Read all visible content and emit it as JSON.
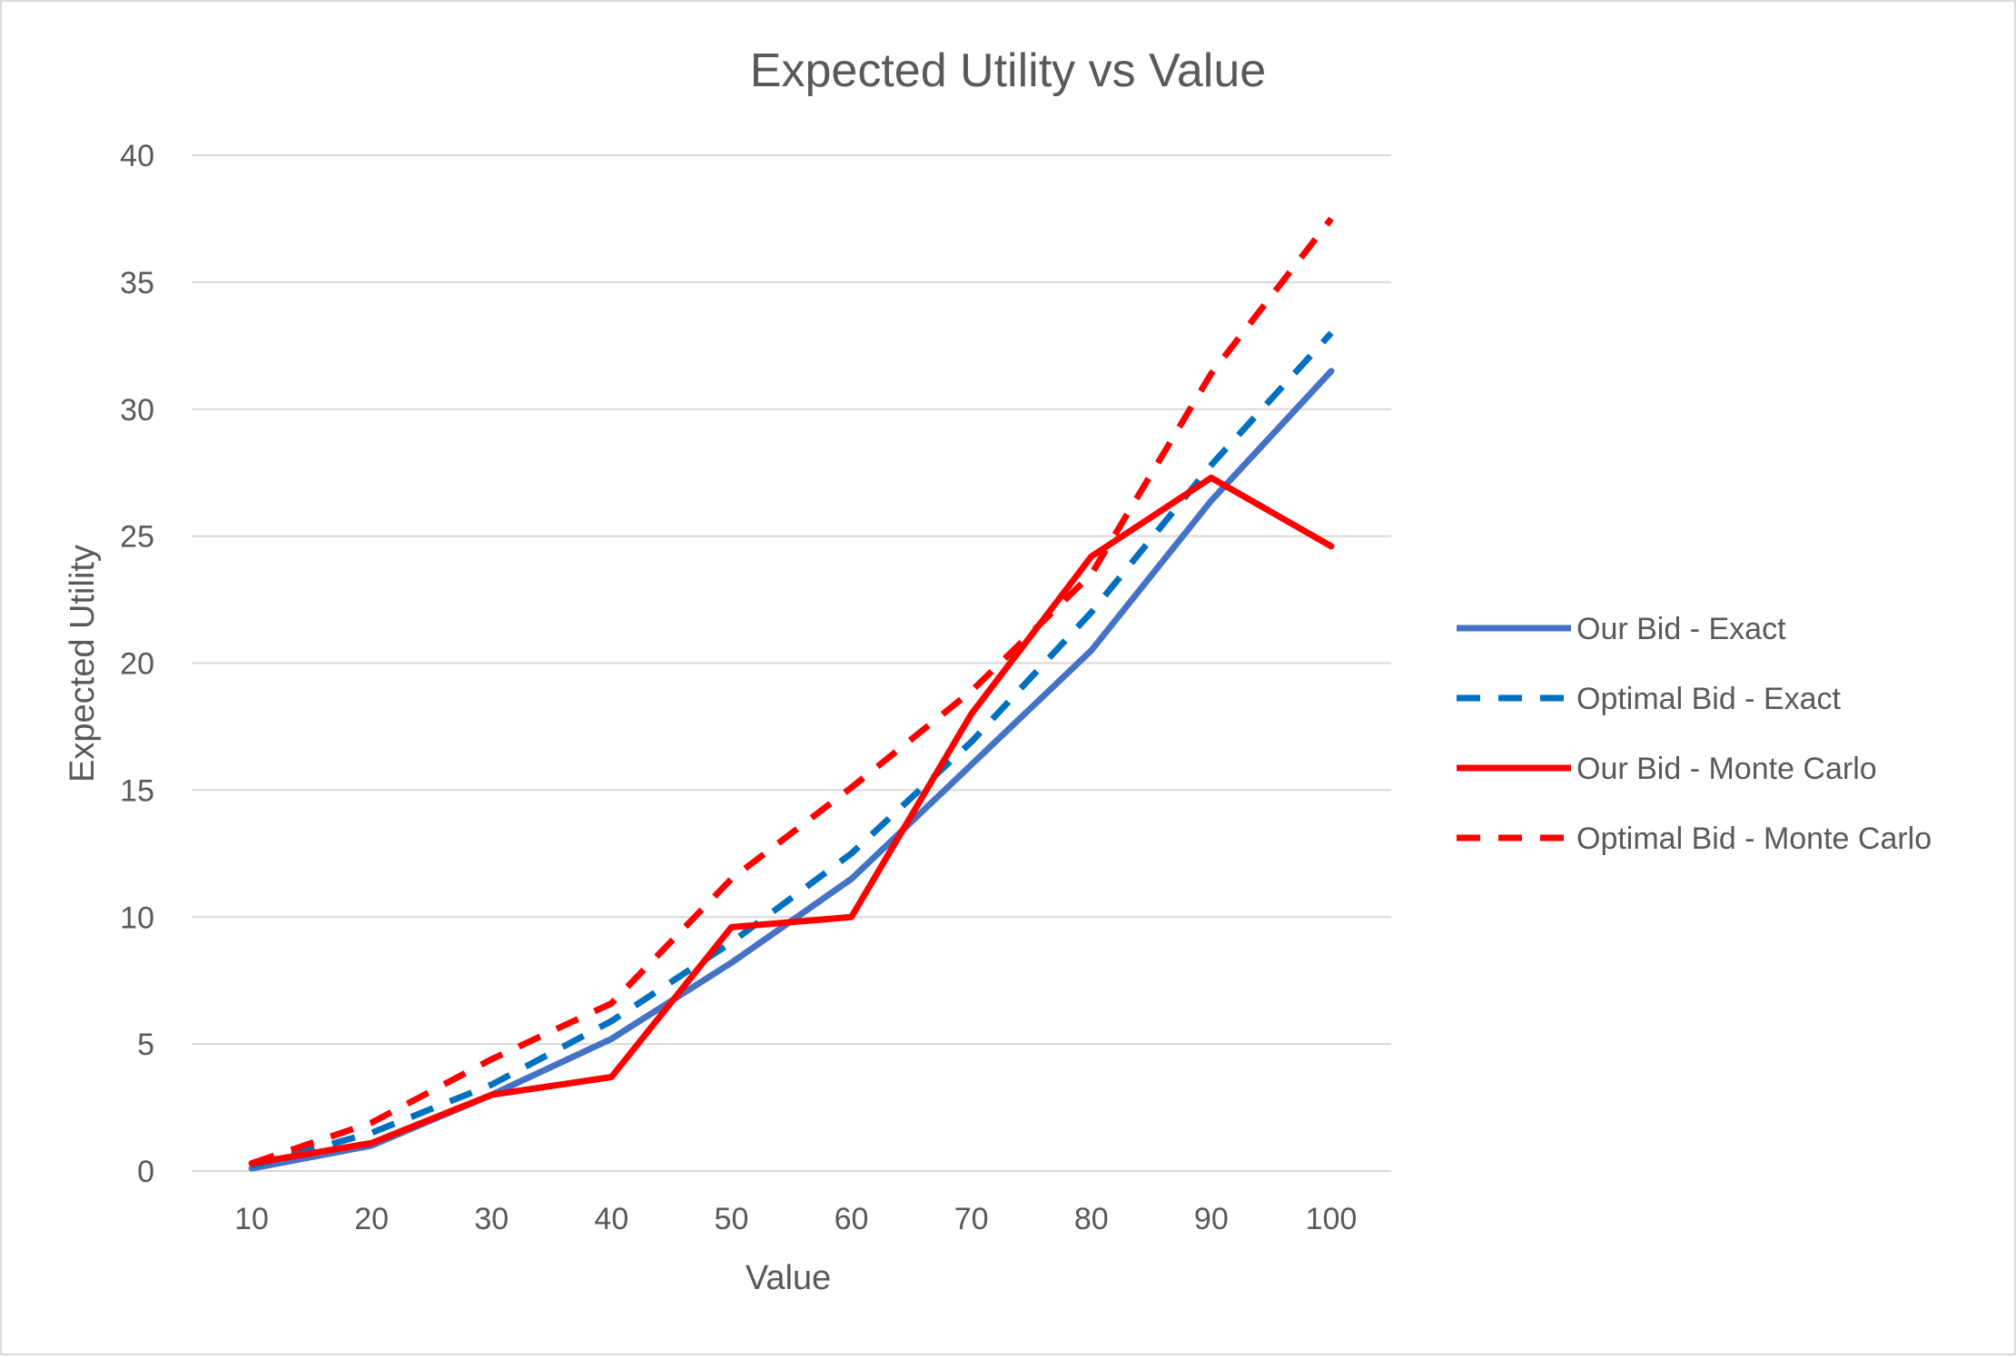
{
  "chart_data": {
    "type": "line",
    "title": "Expected Utility vs Value",
    "xlabel": "Value",
    "ylabel": "Expected Utility",
    "categories": [
      "10",
      "20",
      "30",
      "40",
      "50",
      "60",
      "70",
      "80",
      "90",
      "100"
    ],
    "ylim": [
      0,
      40
    ],
    "yticks": [
      "0",
      "5",
      "10",
      "15",
      "20",
      "25",
      "30",
      "35",
      "40"
    ],
    "grid": true,
    "legend_position": "right",
    "series": [
      {
        "name": "Our Bid - Exact",
        "color": "#4472c4",
        "style": "solid",
        "values": [
          0.1,
          1.0,
          3.0,
          5.2,
          8.2,
          11.5,
          16.0,
          20.5,
          26.4,
          31.5
        ]
      },
      {
        "name": "Optimal Bid - Exact",
        "color": "#0070c0",
        "style": "dashed",
        "values": [
          0.2,
          1.5,
          3.4,
          5.9,
          9.0,
          12.5,
          16.9,
          22.0,
          27.8,
          33.0
        ]
      },
      {
        "name": "Our Bid - Monte Carlo",
        "color": "#ff0000",
        "style": "solid",
        "values": [
          0.3,
          1.1,
          3.0,
          3.7,
          9.6,
          10.0,
          18.0,
          24.2,
          27.3,
          24.6
        ]
      },
      {
        "name": "Optimal Bid - Monte Carlo",
        "color": "#ff0000",
        "style": "dashed",
        "values": [
          0.3,
          1.9,
          4.4,
          6.6,
          11.5,
          15.1,
          18.9,
          23.5,
          31.4,
          37.5
        ]
      }
    ]
  }
}
